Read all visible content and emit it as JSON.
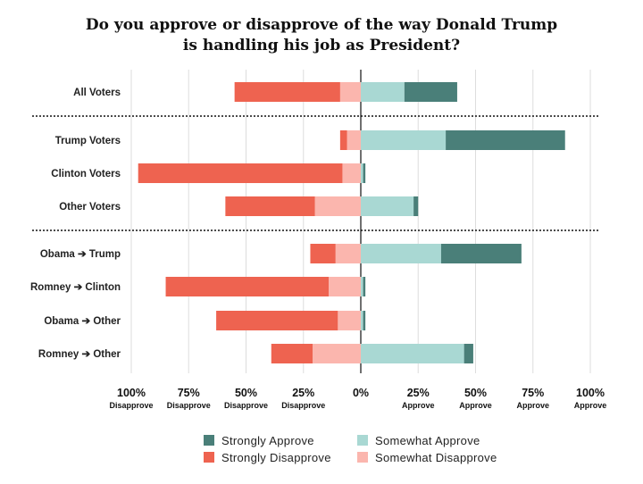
{
  "chart_data": {
    "type": "bar",
    "orientation": "horizontal-diverging",
    "title": "Do you approve or disapprove of the way Donald Trump is handling his job as President?",
    "title_lines": [
      "Do you approve or disapprove of the way Donald Trump",
      "is handling his job as President?"
    ],
    "categories": [
      "All Voters",
      "Trump Voters",
      "Clinton Voters",
      "Other Voters",
      "Obama ➔ Trump",
      "Romney ➔ Clinton",
      "Obama ➔ Other",
      "Romney ➔ Other"
    ],
    "groups": [
      [
        0
      ],
      [
        1,
        2,
        3
      ],
      [
        4,
        5,
        6,
        7
      ]
    ],
    "series": [
      {
        "name": "Strongly Approve",
        "color": "#4a7f79",
        "side": "approve",
        "order": 2,
        "values": [
          23,
          52,
          1,
          2,
          35,
          1,
          1,
          4
        ]
      },
      {
        "name": "Somewhat Approve",
        "color": "#a9d8d3",
        "side": "approve",
        "order": 1,
        "values": [
          19,
          37,
          1,
          23,
          35,
          1,
          1,
          45
        ]
      },
      {
        "name": "Strongly Disapprove",
        "color": "#ee6350",
        "side": "disapprove",
        "order": 2,
        "values": [
          46,
          3,
          89,
          39,
          11,
          71,
          53,
          18
        ]
      },
      {
        "name": "Somewhat Disapprove",
        "color": "#fbb6ae",
        "side": "disapprove",
        "order": 1,
        "values": [
          9,
          6,
          8,
          20,
          11,
          14,
          10,
          21
        ]
      }
    ],
    "xlim": [
      -100,
      100
    ],
    "xticks": [
      {
        "value": -100,
        "pct": "100%",
        "word": "Disapprove"
      },
      {
        "value": -75,
        "pct": "75%",
        "word": "Disapprove"
      },
      {
        "value": -50,
        "pct": "50%",
        "word": "Disapprove"
      },
      {
        "value": -25,
        "pct": "25%",
        "word": "Disapprove"
      },
      {
        "value": 0,
        "pct": "0%",
        "word": ""
      },
      {
        "value": 25,
        "pct": "25%",
        "word": "Approve"
      },
      {
        "value": 50,
        "pct": "50%",
        "word": "Approve"
      },
      {
        "value": 75,
        "pct": "75%",
        "word": "Approve"
      },
      {
        "value": 100,
        "pct": "100%",
        "word": "Approve"
      }
    ],
    "legend": {
      "placement": "bottom",
      "items": [
        "Strongly Approve",
        "Somewhat Approve",
        "Strongly Disapprove",
        "Somewhat Disapprove"
      ]
    },
    "grid": true
  }
}
